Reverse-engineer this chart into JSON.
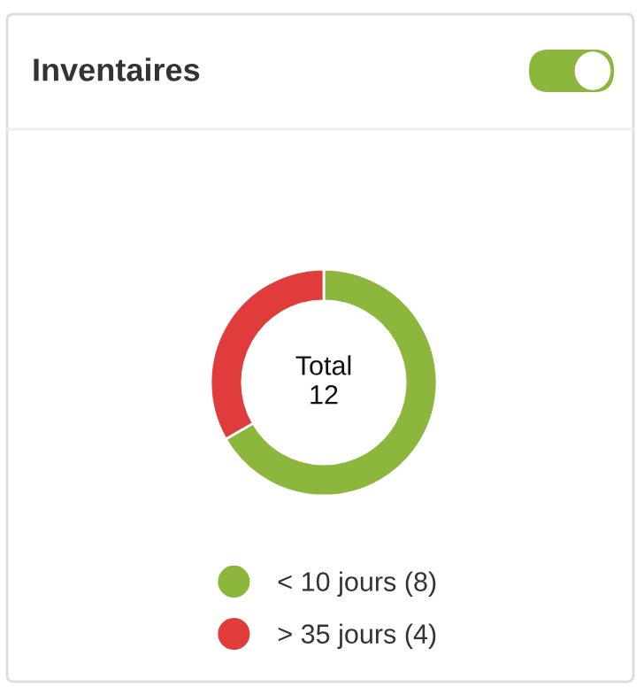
{
  "chart_data": {
    "type": "donut",
    "title": "Inventaires",
    "categories": [
      "< 10 jours (8)",
      "> 35 jours (4)"
    ],
    "values": [
      8,
      4
    ],
    "colors": [
      "#8db63c",
      "#e03c3c"
    ],
    "annotations": [
      "Total\n12"
    ],
    "legend": "bottom"
  }
}
